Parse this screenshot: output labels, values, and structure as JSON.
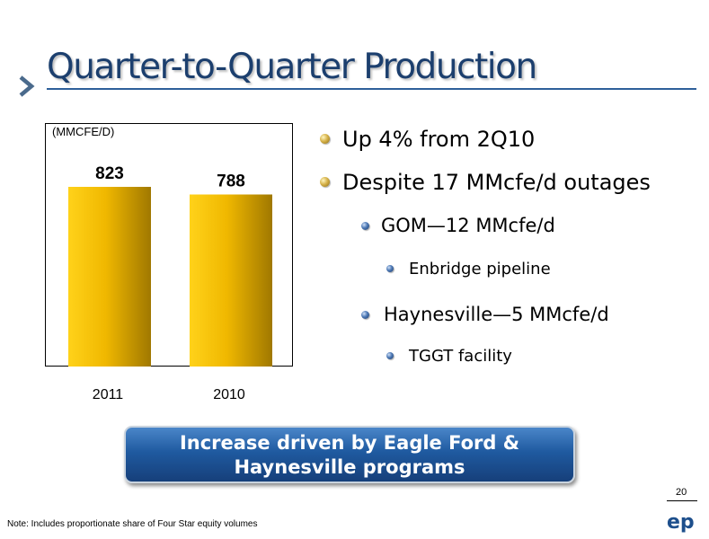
{
  "slide": {
    "title": "Quarter-to-Quarter Production",
    "page_number": "20",
    "note": "Note: Includes proportionate share of Four Star equity volumes",
    "banner": {
      "line1": "Increase driven by Eagle Ford &",
      "line2": "Haynesville programs"
    },
    "bullets": [
      {
        "level": 1,
        "text": "Up 4% from 2Q10"
      },
      {
        "level": 1,
        "text": "Despite 17 MMcfe/d outages"
      },
      {
        "level": 2,
        "text": "GOM—12 MMcfe/d"
      },
      {
        "level": 3,
        "text": "Enbridge pipeline"
      },
      {
        "level": 2,
        "text": "Haynesville—5 MMcfe/d"
      },
      {
        "level": 3,
        "text": "TGGT facility"
      }
    ],
    "colors": {
      "title": "#1c3f6e",
      "bar": "#e8b800",
      "banner": "#1f5aa0"
    },
    "logo_text": "ep"
  },
  "chart_data": {
    "type": "bar",
    "unit_label": "(MMCFE/D)",
    "categories": [
      "2011",
      "2010"
    ],
    "values": [
      823,
      788
    ],
    "data_labels": [
      "823",
      "788"
    ]
  }
}
